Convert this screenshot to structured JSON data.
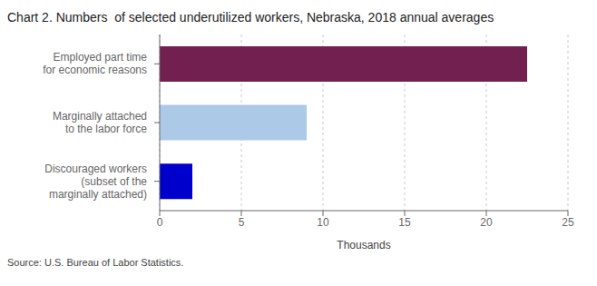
{
  "chart_data": {
    "type": "bar",
    "title": "Chart 2. Numbers  of selected underutilized workers, Nebraska, 2018 annual averages",
    "categories": [
      "Discouraged workers\n(subset of the\nmarginally attached)",
      "Marginally attached\nto the labor force",
      "Employed part time\nfor economic reasons"
    ],
    "values": [
      2.0,
      9.0,
      22.5
    ],
    "colors": [
      "#0000cc",
      "#adc9e8",
      "#722050"
    ],
    "orientation": "horizontal",
    "xlim": [
      0,
      25
    ],
    "xticks": [
      0,
      5,
      10,
      15,
      20,
      25
    ],
    "xlabel": "Thousands",
    "source": "Source: U.S. Bureau of Labor Statistics.",
    "grid": true
  }
}
